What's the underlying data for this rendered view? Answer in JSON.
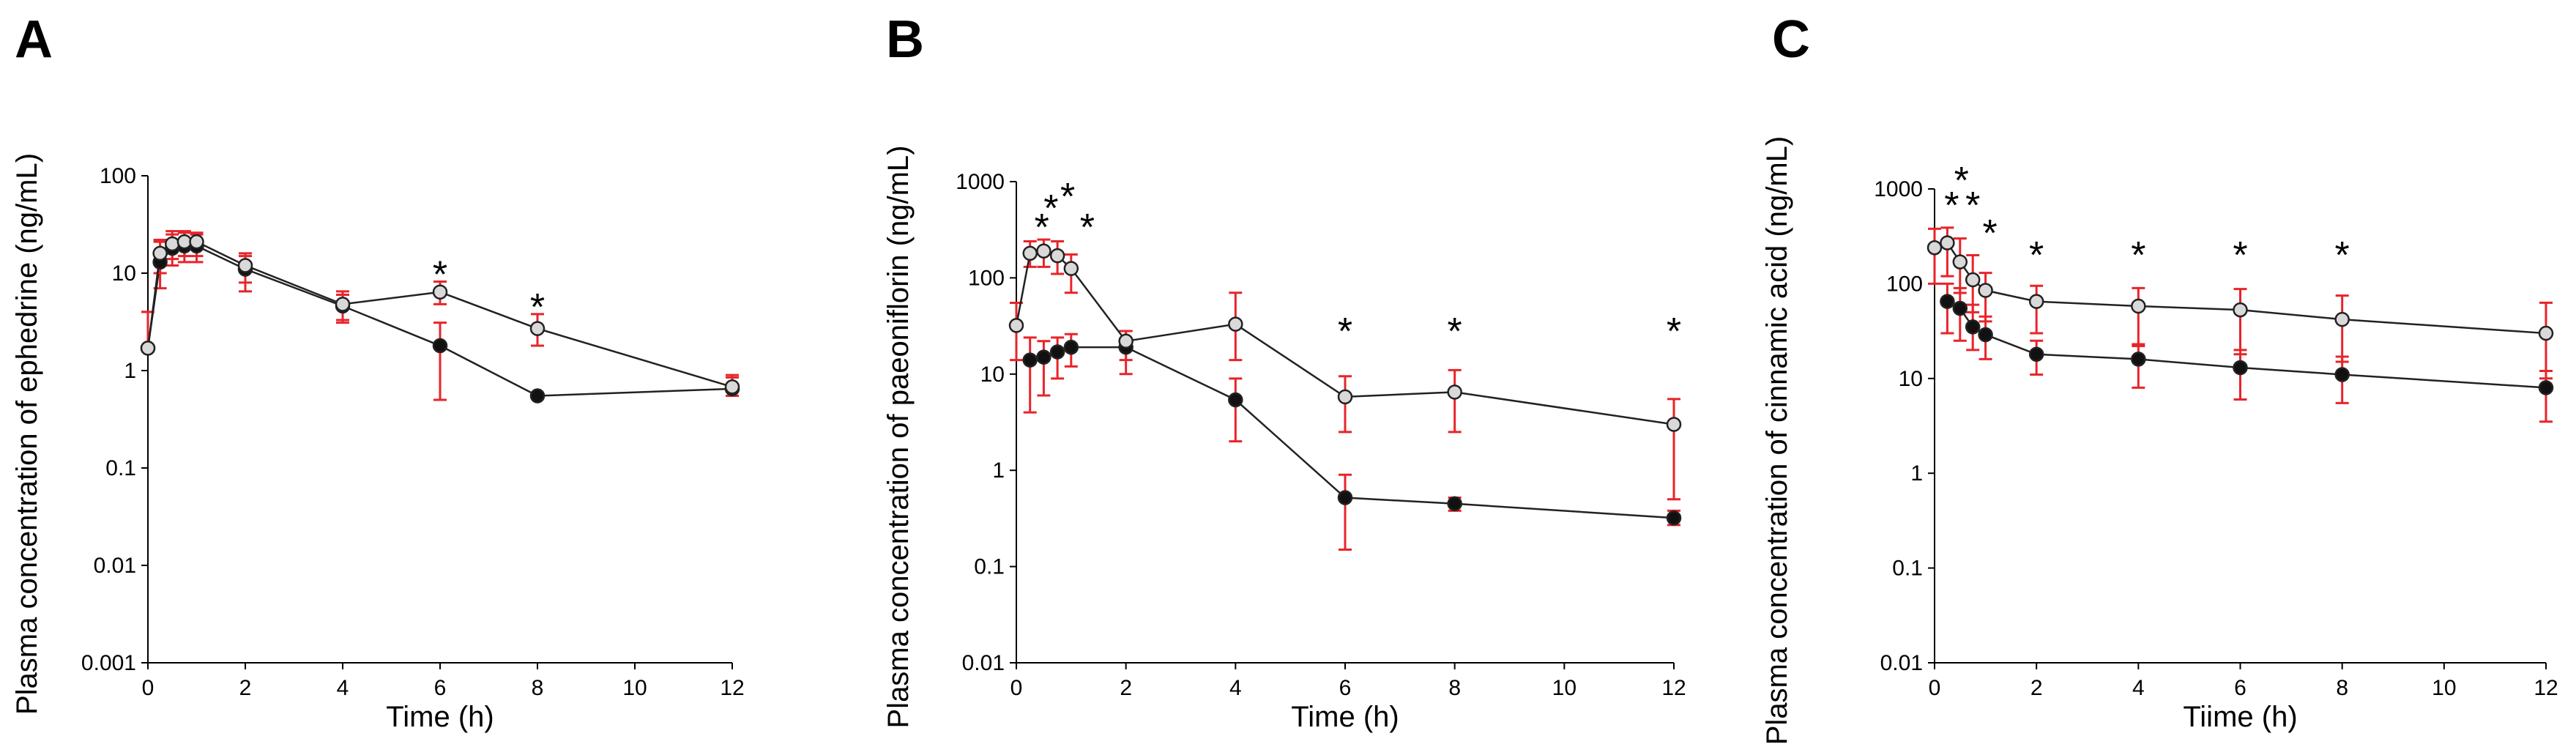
{
  "chart_data": [
    {
      "panel": "A",
      "type": "line",
      "yscale": "log",
      "xlabel": "Time (h)",
      "ylabel": "Plasma concentration of ephedrine (ng/mL)",
      "xlim": [
        0,
        12
      ],
      "ylim": [
        0.001,
        100
      ],
      "xticks": [
        "0",
        "2",
        "4",
        "6",
        "8",
        "10",
        "12"
      ],
      "yticks": [
        "0.001",
        "0.01",
        "0.1",
        "1",
        "10",
        "100"
      ],
      "colors": {
        "error_bar": "#e8242a",
        "line": "#222222",
        "open_marker_fill": "#d9d9d9",
        "filled_marker": "#111111"
      },
      "series": [
        {
          "marker": "filled",
          "x": [
            0,
            0.25,
            0.5,
            0.75,
            1,
            2,
            4,
            6,
            8,
            12
          ],
          "y": [
            1.7,
            13,
            18,
            19,
            19,
            11,
            4.6,
            1.8,
            0.55,
            0.65
          ],
          "err_low": [
            1.7,
            7,
            12,
            13,
            13,
            6.5,
            3.1,
            0.5,
            0.55,
            0.55
          ],
          "err_high": [
            4,
            21,
            25,
            26,
            25,
            16,
            6,
            3.1,
            0.55,
            0.85
          ]
        },
        {
          "marker": "open",
          "x": [
            0,
            0.25,
            0.5,
            0.75,
            1,
            2,
            4,
            6,
            8,
            12
          ],
          "y": [
            1.7,
            16,
            20,
            21,
            21,
            12,
            4.8,
            6.4,
            2.7,
            0.68
          ],
          "err_low": [
            1.7,
            10,
            14,
            15,
            15,
            8,
            3.3,
            4.8,
            1.8,
            0.55
          ],
          "err_high": [
            4,
            22,
            27,
            27,
            26,
            15,
            6.5,
            8.2,
            3.8,
            0.9
          ]
        }
      ],
      "significance_markers": [
        {
          "x": 6,
          "label": "*"
        },
        {
          "x": 8,
          "label": "*"
        }
      ]
    },
    {
      "panel": "B",
      "type": "line",
      "yscale": "log",
      "xlabel": "Time (h)",
      "ylabel": "Plasma concentration of paeoniflorin (ng/mL)",
      "xlim": [
        0,
        12
      ],
      "ylim": [
        0.01,
        1000
      ],
      "xticks": [
        "0",
        "2",
        "4",
        "6",
        "8",
        "10",
        "12"
      ],
      "yticks": [
        "0.01",
        "0.1",
        "1",
        "10",
        "100",
        "1000"
      ],
      "series": [
        {
          "marker": "filled",
          "x": [
            0.25,
            0.5,
            0.75,
            1,
            2,
            4,
            6,
            8,
            12
          ],
          "y": [
            14,
            15,
            17,
            19,
            19,
            5.4,
            0.52,
            0.45,
            0.32
          ],
          "err_low": [
            4,
            6,
            9,
            12,
            10,
            2,
            0.15,
            0.38,
            0.27
          ],
          "err_high": [
            24,
            22,
            24,
            26,
            28,
            9,
            0.9,
            0.52,
            0.38
          ]
        },
        {
          "marker": "open",
          "x": [
            0,
            0.25,
            0.5,
            0.75,
            1,
            2,
            4,
            6,
            8,
            12
          ],
          "y": [
            32,
            180,
            190,
            170,
            125,
            22,
            33,
            5.8,
            6.5,
            3
          ],
          "err_low": [
            14,
            130,
            130,
            110,
            70,
            14,
            14,
            2.5,
            2.5,
            0.5
          ],
          "err_high": [
            55,
            240,
            250,
            240,
            175,
            28,
            70,
            9.5,
            11,
            5.5
          ]
        }
      ],
      "significance_markers": [
        {
          "x": 0.25,
          "label": "*"
        },
        {
          "x": 0.5,
          "label": "*"
        },
        {
          "x": 0.75,
          "label": "*"
        },
        {
          "x": 1,
          "label": "*"
        },
        {
          "x": 6,
          "label": "*"
        },
        {
          "x": 8,
          "label": "*"
        },
        {
          "x": 12,
          "label": "*"
        }
      ]
    },
    {
      "panel": "C",
      "type": "line",
      "yscale": "log",
      "xlabel": "Tiime (h)",
      "ylabel": "Plasma concentration of cinnamic acid (ng/mL)",
      "xlim": [
        0,
        12
      ],
      "ylim": [
        0.01,
        1000
      ],
      "xticks": [
        "0",
        "2",
        "4",
        "6",
        "8",
        "10",
        "12"
      ],
      "yticks": [
        "0.01",
        "0.1",
        "1",
        "10",
        "100",
        "1000"
      ],
      "series": [
        {
          "marker": "filled",
          "x": [
            0.25,
            0.5,
            0.75,
            1,
            2,
            4,
            6,
            8,
            12
          ],
          "y": [
            65,
            55,
            35,
            29,
            18,
            16,
            13,
            11,
            8
          ],
          "err_low": [
            30,
            25,
            20,
            16,
            11,
            8,
            6,
            5.5,
            3.5
          ],
          "err_high": [
            100,
            90,
            60,
            45,
            25,
            23,
            20,
            17,
            12
          ]
        },
        {
          "marker": "open",
          "x": [
            0,
            0.25,
            0.5,
            0.75,
            1,
            2,
            4,
            6,
            8,
            12
          ],
          "y": [
            240,
            270,
            170,
            110,
            85,
            65,
            58,
            53,
            42,
            30
          ],
          "err_low": [
            100,
            120,
            80,
            50,
            40,
            30,
            22,
            18,
            15,
            10
          ],
          "err_high": [
            380,
            390,
            300,
            200,
            130,
            95,
            90,
            88,
            75,
            63
          ]
        }
      ],
      "significance_markers": [
        {
          "x": 0.25,
          "label": "*"
        },
        {
          "x": 0.5,
          "label": "*"
        },
        {
          "x": 0.75,
          "label": "*"
        },
        {
          "x": 1,
          "label": "*"
        },
        {
          "x": 2,
          "label": "*"
        },
        {
          "x": 4,
          "label": "*"
        },
        {
          "x": 6,
          "label": "*"
        },
        {
          "x": 8,
          "label": "*"
        }
      ]
    }
  ]
}
